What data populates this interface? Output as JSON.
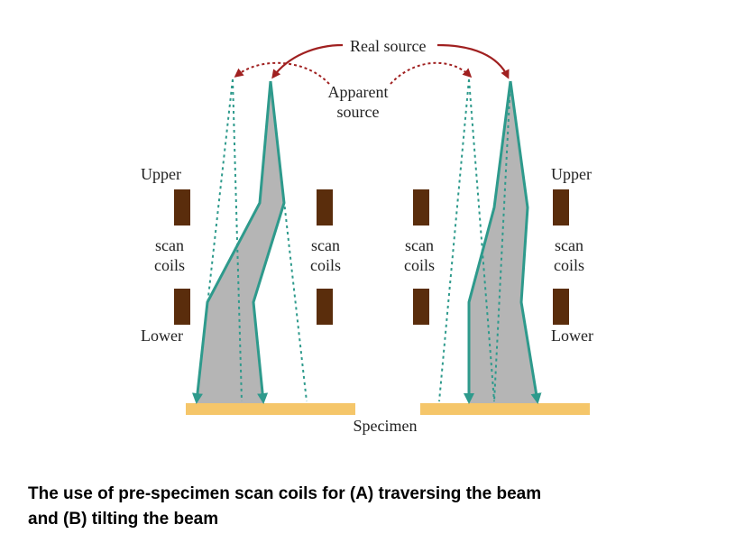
{
  "labels": {
    "real_source": "Real source",
    "apparent_source_line1": "Apparent",
    "apparent_source_line2": "source",
    "upper": "Upper",
    "lower": "Lower",
    "scan": "scan",
    "coils": "coils",
    "specimen": "Specimen"
  },
  "caption": {
    "line1": "The use of pre-specimen scan coils for (A) traversing the beam",
    "line2": "and (B) tilting the beam"
  },
  "colors": {
    "coil": "#5a2d0c",
    "specimen": "#f5c66a",
    "beam_edge": "#2e9a8c",
    "beam_fill": "#b5b5b5",
    "arrow": "#a02020"
  }
}
